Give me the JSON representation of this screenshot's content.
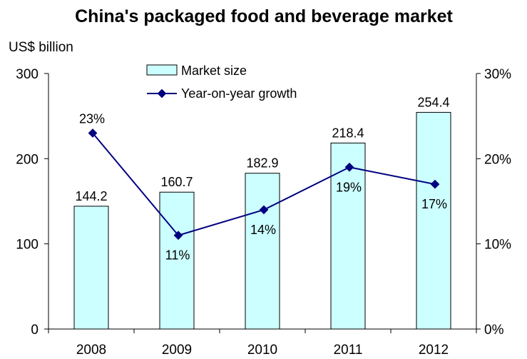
{
  "chart_data": {
    "type": "bar",
    "title": "China's packaged food and beverage market",
    "ylabel": "US$ billion",
    "categories": [
      "2008",
      "2009",
      "2010",
      "2011",
      "2012"
    ],
    "y_ticks": [
      "0",
      "100",
      "200",
      "300"
    ],
    "y2_ticks": [
      "0%",
      "10%",
      "20%",
      "30%"
    ],
    "ylim": [
      0,
      300
    ],
    "y2lim": [
      0,
      30
    ],
    "grid": false,
    "legend_position": "top-center",
    "series": [
      {
        "name": "Market size",
        "type": "bar",
        "axis": "left",
        "values": [
          144.2,
          160.7,
          182.9,
          218.4,
          254.4
        ],
        "labels": [
          "144.2",
          "160.7",
          "182.9",
          "218.4",
          "254.4"
        ],
        "color": "#ccffff"
      },
      {
        "name": "Year-on-year growth",
        "type": "line",
        "axis": "right",
        "values": [
          23,
          11,
          14,
          19,
          17
        ],
        "labels": [
          "23%",
          "11%",
          "14%",
          "19%",
          "17%"
        ],
        "color": "#000080"
      }
    ]
  }
}
